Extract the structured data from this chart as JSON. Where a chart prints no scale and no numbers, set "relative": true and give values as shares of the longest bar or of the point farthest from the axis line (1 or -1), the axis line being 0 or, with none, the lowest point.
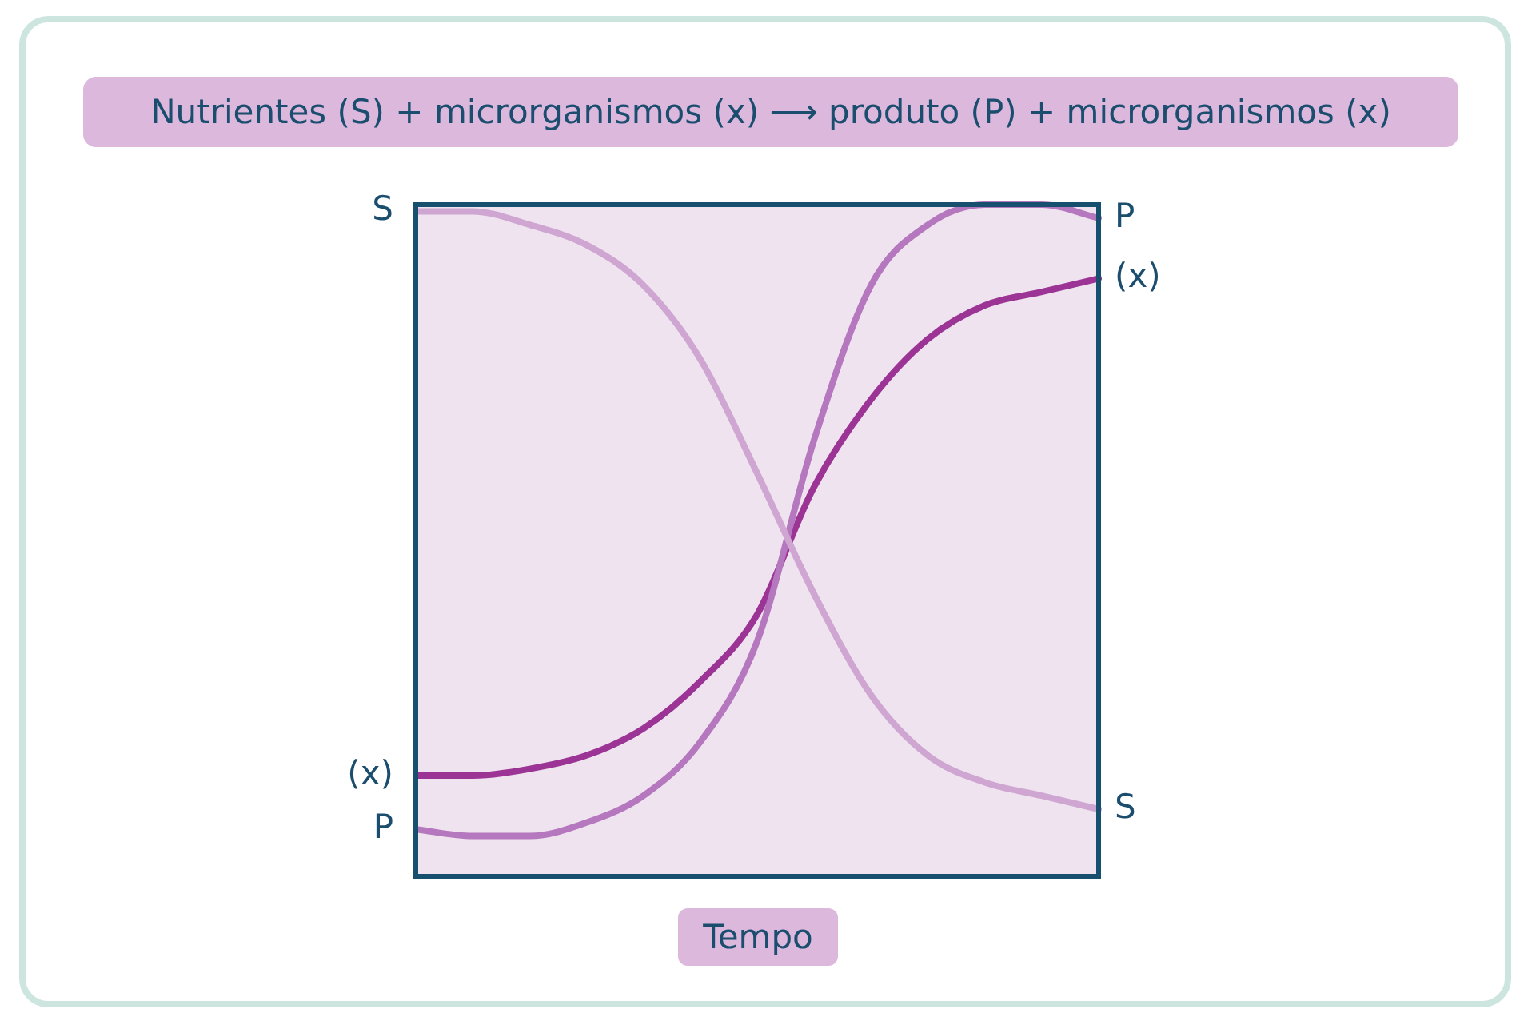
{
  "chart_data": {
    "type": "line",
    "title": "Nutrientes (S) + microrganismos (x) ⟶ produto (P) + microrganismos (x)",
    "xlabel": "Tempo",
    "relative": true,
    "marker": "none",
    "legend": false,
    "categories": [
      null,
      null,
      null,
      null,
      null,
      null,
      null,
      null,
      null,
      null,
      null,
      null,
      null
    ],
    "series": [
      {
        "name": "S",
        "color": "#cfa6d2",
        "values": [
          0.99,
          0.99,
          0.97,
          0.94,
          0.88,
          0.77,
          0.6,
          0.42,
          0.27,
          0.18,
          0.14,
          0.12,
          0.1
        ]
      },
      {
        "name": "P",
        "color": "#b577bd",
        "values": [
          0.07,
          0.06,
          0.06,
          0.08,
          0.12,
          0.2,
          0.35,
          0.65,
          0.88,
          0.97,
          1.0,
          1.0,
          0.98
        ]
      },
      {
        "name": "(x)",
        "color": "#9b3495",
        "values": [
          0.15,
          0.15,
          0.16,
          0.18,
          0.22,
          0.29,
          0.39,
          0.58,
          0.71,
          0.8,
          0.85,
          0.87,
          0.89
        ]
      }
    ]
  }
}
